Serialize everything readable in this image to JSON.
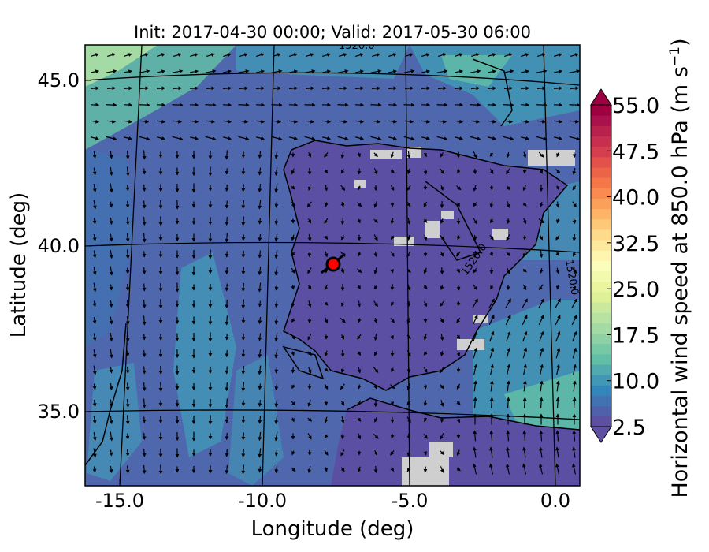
{
  "title": "Init: 2017-04-30 00:00; Valid: 2017-05-30 06:00",
  "xlabel": "Longitude (deg)",
  "ylabel": "Latitude (deg)",
  "x_ticks": [
    "-15.0",
    "-10.0",
    "-5.0",
    "0.0"
  ],
  "y_ticks": [
    "45.0",
    "40.0",
    "35.0"
  ],
  "colorbar": {
    "label_main": "Horizontal wind speed at 850.0 hPa (m s",
    "label_exp": "−1",
    "label_close": ")",
    "ticks": [
      "2.5",
      "10.0",
      "17.5",
      "25.0",
      "32.5",
      "40.0",
      "47.5",
      "55.0"
    ],
    "colors": [
      "#5e4fa2",
      "#4f61aa",
      "#4173b3",
      "#3386bc",
      "#4198b6",
      "#51abae",
      "#62bea6",
      "#77c8a4",
      "#8ed1a4",
      "#a4daa4",
      "#b8e2a1",
      "#cbe99d",
      "#def199",
      "#eaf69e",
      "#f2faac",
      "#fbfdba",
      "#fff5ae",
      "#fee89d",
      "#fedb8b",
      "#fdc877",
      "#fdb466",
      "#fba05b",
      "#f98b51",
      "#f57747",
      "#ec6448",
      "#e2514a",
      "#d53e4f",
      "#c6304e",
      "#b7214c",
      "#a8114b",
      "#9e0142"
    ]
  },
  "contour_labels": [
    "1520.0",
    "1520.0",
    "1520.0"
  ],
  "marker_color": "#ff0000",
  "land_color": "#5b4fa4",
  "sea_color": "#4f67ad"
}
